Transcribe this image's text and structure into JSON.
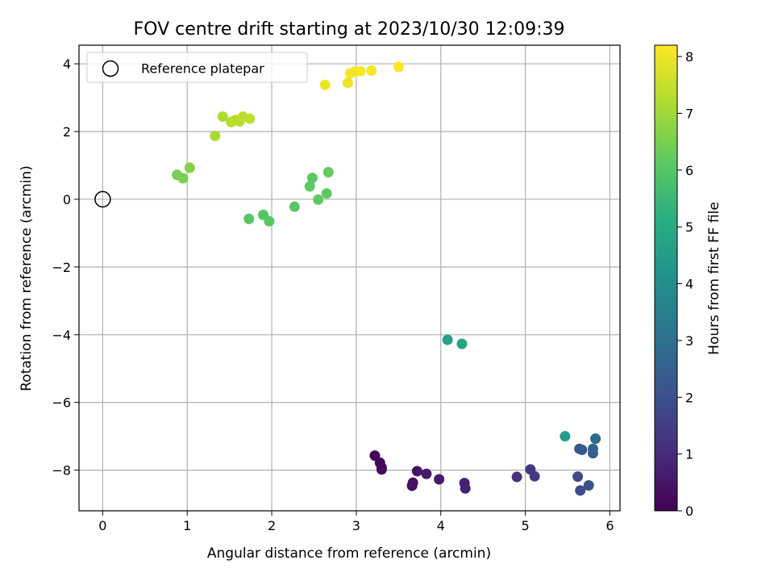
{
  "chart_data": {
    "type": "scatter",
    "title": "FOV centre drift starting at 2023/10/30 12:09:39",
    "xlabel": "Angular distance from reference (arcmin)",
    "ylabel": "Rotation from reference (arcmin)",
    "xlim": [
      -0.28,
      6.12
    ],
    "ylim": [
      -9.2,
      4.55
    ],
    "xticks": [
      0,
      1,
      2,
      3,
      4,
      5,
      6
    ],
    "yticks": [
      -8,
      -6,
      -4,
      -2,
      0,
      2,
      4
    ],
    "grid": true,
    "colormap": "viridis",
    "colorbar": {
      "label": "Hours from first FF file",
      "range": [
        0,
        8.2
      ],
      "ticks": [
        0,
        1,
        2,
        3,
        4,
        5,
        6,
        7,
        8
      ]
    },
    "legend": {
      "placement": "top-left",
      "entries": [
        "Reference platepar"
      ]
    },
    "reference_point": {
      "x": 0,
      "y": 0
    },
    "points": [
      {
        "x": 3.22,
        "y": -7.57,
        "c": 0.1
      },
      {
        "x": 3.28,
        "y": -7.78,
        "c": 0.15
      },
      {
        "x": 3.3,
        "y": -7.98,
        "c": 0.2
      },
      {
        "x": 3.3,
        "y": -7.92,
        "c": 0.22
      },
      {
        "x": 3.66,
        "y": -8.46,
        "c": 0.3
      },
      {
        "x": 3.67,
        "y": -8.37,
        "c": 0.35
      },
      {
        "x": 3.72,
        "y": -8.03,
        "c": 0.45
      },
      {
        "x": 3.83,
        "y": -8.11,
        "c": 0.55
      },
      {
        "x": 3.98,
        "y": -8.27,
        "c": 0.65
      },
      {
        "x": 4.28,
        "y": -8.38,
        "c": 0.75
      },
      {
        "x": 4.29,
        "y": -8.54,
        "c": 0.8
      },
      {
        "x": 4.9,
        "y": -8.2,
        "c": 1.2
      },
      {
        "x": 5.06,
        "y": -7.98,
        "c": 1.3
      },
      {
        "x": 5.11,
        "y": -8.18,
        "c": 1.4
      },
      {
        "x": 5.62,
        "y": -8.19,
        "c": 1.8
      },
      {
        "x": 5.65,
        "y": -8.6,
        "c": 1.9
      },
      {
        "x": 5.75,
        "y": -8.45,
        "c": 2.0
      },
      {
        "x": 5.64,
        "y": -7.37,
        "c": 2.2
      },
      {
        "x": 5.67,
        "y": -7.4,
        "c": 2.3
      },
      {
        "x": 5.8,
        "y": -7.5,
        "c": 2.5
      },
      {
        "x": 5.8,
        "y": -7.37,
        "c": 2.6
      },
      {
        "x": 5.83,
        "y": -7.07,
        "c": 2.8
      },
      {
        "x": 5.47,
        "y": -7.0,
        "c": 4.5
      },
      {
        "x": 4.08,
        "y": -4.15,
        "c": 4.7
      },
      {
        "x": 4.25,
        "y": -4.27,
        "c": 4.8
      },
      {
        "x": 1.73,
        "y": -0.58,
        "c": 6.0
      },
      {
        "x": 1.9,
        "y": -0.46,
        "c": 6.0
      },
      {
        "x": 1.97,
        "y": -0.65,
        "c": 6.05
      },
      {
        "x": 2.27,
        "y": -0.22,
        "c": 6.05
      },
      {
        "x": 2.45,
        "y": 0.38,
        "c": 6.1
      },
      {
        "x": 2.48,
        "y": 0.63,
        "c": 6.1
      },
      {
        "x": 2.55,
        "y": -0.01,
        "c": 6.15
      },
      {
        "x": 2.65,
        "y": 0.17,
        "c": 6.15
      },
      {
        "x": 2.67,
        "y": 0.8,
        "c": 6.2
      },
      {
        "x": 0.88,
        "y": 0.72,
        "c": 6.5
      },
      {
        "x": 0.95,
        "y": 0.62,
        "c": 6.5
      },
      {
        "x": 1.03,
        "y": 0.93,
        "c": 6.6
      },
      {
        "x": 1.33,
        "y": 1.87,
        "c": 7.1
      },
      {
        "x": 1.42,
        "y": 2.44,
        "c": 7.2
      },
      {
        "x": 1.52,
        "y": 2.28,
        "c": 7.25
      },
      {
        "x": 1.57,
        "y": 2.34,
        "c": 7.3
      },
      {
        "x": 1.62,
        "y": 2.3,
        "c": 7.3
      },
      {
        "x": 1.66,
        "y": 2.44,
        "c": 7.35
      },
      {
        "x": 1.74,
        "y": 2.38,
        "c": 7.4
      },
      {
        "x": 2.63,
        "y": 3.38,
        "c": 7.95
      },
      {
        "x": 2.9,
        "y": 3.44,
        "c": 8.0
      },
      {
        "x": 2.93,
        "y": 3.72,
        "c": 8.05
      },
      {
        "x": 2.98,
        "y": 3.77,
        "c": 8.05
      },
      {
        "x": 3.05,
        "y": 3.78,
        "c": 8.1
      },
      {
        "x": 3.18,
        "y": 3.8,
        "c": 8.1
      },
      {
        "x": 3.5,
        "y": 3.91,
        "c": 8.15
      }
    ]
  }
}
